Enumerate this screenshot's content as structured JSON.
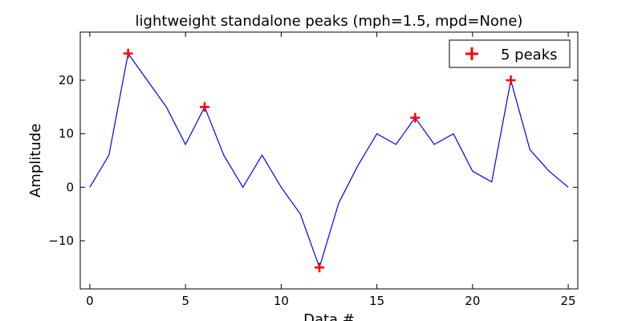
{
  "chart_data": {
    "type": "line",
    "title": "lightweight standalone peaks (mph=1.5, mpd=None)",
    "xlabel": "Data #",
    "ylabel": "Amplitude",
    "xlim": [
      -0.5,
      25.5
    ],
    "ylim": [
      -19,
      29
    ],
    "xticks": [
      0,
      5,
      10,
      15,
      20,
      25
    ],
    "yticks": [
      -10,
      0,
      10,
      20
    ],
    "ytick_labels": [
      "−10",
      "0",
      "10",
      "20"
    ],
    "grid": false,
    "legend_placement": "top-right",
    "series": [
      {
        "kind": "line",
        "color": "#0000ff",
        "x": [
          0,
          1,
          2,
          3,
          4,
          5,
          6,
          7,
          8,
          9,
          10,
          11,
          12,
          13,
          14,
          15,
          16,
          17,
          18,
          19,
          20,
          21,
          22,
          23,
          24,
          25
        ],
        "values": [
          0,
          6,
          25,
          20,
          15,
          8,
          15,
          6,
          0,
          6,
          0,
          -5,
          -15,
          -3,
          4,
          10,
          8,
          13,
          8,
          10,
          3,
          1,
          20,
          7,
          3,
          0
        ]
      },
      {
        "name": "5 peaks",
        "kind": "marker",
        "marker": "plus",
        "color": "#ff0000",
        "x": [
          2,
          6,
          12,
          17,
          22
        ],
        "values": [
          25,
          15,
          -15,
          13,
          20
        ]
      }
    ]
  }
}
